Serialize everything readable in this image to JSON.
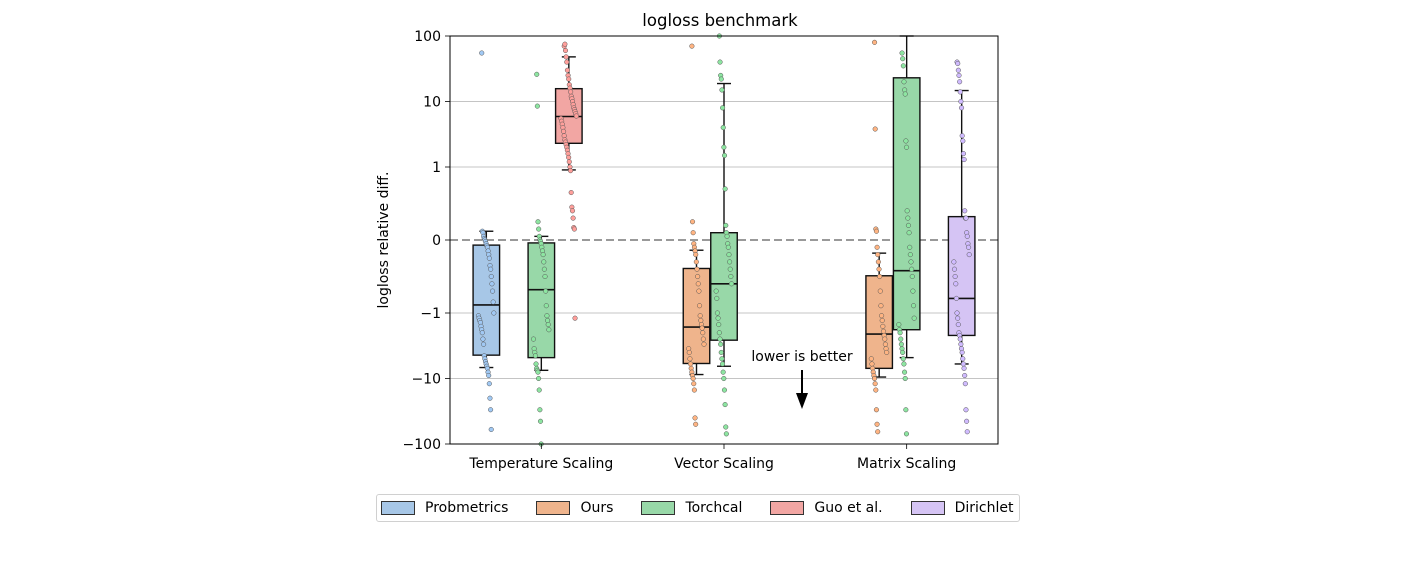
{
  "chart_data": {
    "type": "box",
    "title": "logloss benchmark",
    "ylabel": "logloss relative diff.",
    "xlabel": "",
    "yscale": "symlog",
    "ylim": [
      -100,
      100
    ],
    "yticks": [
      100,
      10,
      1,
      0,
      -1,
      -10,
      -100
    ],
    "ytick_labels": [
      "100",
      "10",
      "1",
      "0",
      "−1",
      "−10",
      "−100"
    ],
    "grid": "horizontal",
    "reference_line": 0,
    "categories": [
      "Temperature Scaling",
      "Vector Scaling",
      "Matrix Scaling"
    ],
    "legend_position": "bottom",
    "series": [
      {
        "name": "Probmetrics",
        "color": "#a7c7e7",
        "point_color": "#a1c9f4",
        "boxes": [
          {
            "category": "Temperature Scaling",
            "whisker_low": -6.8,
            "q1": -4.4,
            "median": -0.89,
            "q3": -0.07,
            "whisker_high": 0.12,
            "points": [
              55,
              0.12,
              0.1,
              0.05,
              0.02,
              0,
              -0.02,
              -0.05,
              -0.08,
              -0.1,
              -0.15,
              -0.2,
              -0.25,
              -0.35,
              -0.4,
              -0.5,
              -0.6,
              -0.7,
              -0.85,
              -1.0,
              -1.1,
              -1.2,
              -1.3,
              -1.4,
              -1.6,
              -1.8,
              -2.0,
              -2.5,
              -3,
              -4.5,
              -5,
              -5.5,
              -6,
              -6.5,
              -7,
              -8,
              -9,
              -12,
              -20,
              -30,
              -60
            ]
          }
        ]
      },
      {
        "name": "Ours",
        "color": "#efb48c",
        "point_color": "#ffb482",
        "boxes": [
          {
            "category": "Vector Scaling",
            "whisker_low": -8.7,
            "q1": -5.9,
            "median": -1.64,
            "q3": -0.39,
            "whisker_high": -0.14,
            "points": [
              70,
              0.25,
              0.1,
              -0.05,
              -0.1,
              -0.15,
              -0.2,
              -0.3,
              -0.4,
              -0.5,
              -0.6,
              -0.7,
              -0.9,
              -1.1,
              -1.3,
              -1.5,
              -1.7,
              -2,
              -2.5,
              -3,
              -3.5,
              -4,
              -5,
              -6,
              -7,
              -8,
              -9,
              -10,
              -12,
              -15,
              -40,
              -50
            ]
          },
          {
            "category": "Matrix Scaling",
            "whisker_low": -9.5,
            "q1": -7.0,
            "median": -2.1,
            "q3": -0.49,
            "whisker_high": -0.18,
            "points": [
              80,
              3.8,
              0.15,
              0.12,
              -0.1,
              -0.2,
              -0.3,
              -0.4,
              -0.5,
              -0.7,
              -0.9,
              -1.1,
              -1.3,
              -1.6,
              -1.9,
              -2.2,
              -2.5,
              -3,
              -3.5,
              -4,
              -5,
              -6,
              -7,
              -8,
              -9,
              -10,
              -12,
              -15,
              -30,
              -50,
              -65
            ]
          }
        ]
      },
      {
        "name": "Torchcal",
        "color": "#98d8a8",
        "point_color": "#8de5a1",
        "boxes": [
          {
            "category": "Temperature Scaling",
            "whisker_low": -7.5,
            "q1": -4.8,
            "median": -0.68,
            "q3": -0.04,
            "whisker_high": 0.05,
            "points": [
              26,
              8.5,
              0.25,
              0.15,
              0.05,
              0,
              -0.02,
              -0.05,
              -0.1,
              -0.15,
              -0.2,
              -0.3,
              -0.4,
              -0.5,
              -0.7,
              -0.9,
              -1.1,
              -1.3,
              -1.5,
              -1.8,
              -2.5,
              -3.5,
              -4,
              -4.5,
              -6,
              -7,
              -7.5,
              -8,
              -10,
              -15,
              -30,
              -45,
              -100
            ]
          },
          {
            "category": "Vector Scaling",
            "whisker_low": -6.5,
            "q1": -2.6,
            "median": -0.6,
            "q3": 0.1,
            "whisker_high": 18.8,
            "points": [
              100,
              40,
              25,
              22,
              15,
              8,
              4,
              2,
              1.5,
              0.7,
              0.2,
              0.1,
              0.05,
              -0.05,
              -0.1,
              -0.2,
              -0.3,
              -0.4,
              -0.5,
              -0.6,
              -0.7,
              -0.8,
              -1,
              -1.2,
              -1.5,
              -2,
              -2.5,
              -3,
              -4,
              -5,
              -6,
              -8,
              -10,
              -15,
              -25,
              -55,
              -70
            ]
          },
          {
            "category": "Matrix Scaling",
            "whisker_low": -4.8,
            "q1": -1.8,
            "median": -0.42,
            "q3": 23,
            "whisker_high": 100,
            "points": [
              55,
              45,
              35,
              20,
              15,
              13,
              2.5,
              2.0,
              0.4,
              0.3,
              0.2,
              0.1,
              -0.1,
              -0.2,
              -0.3,
              -0.4,
              -0.5,
              -0.7,
              -0.9,
              -1.2,
              -1.5,
              -1.8,
              -2,
              -2.5,
              -3,
              -3.5,
              -4,
              -5,
              -6,
              -8,
              -10,
              -30,
              -70
            ]
          }
        ]
      },
      {
        "name": "Guo et al.",
        "color": "#f2a6a3",
        "point_color": "#ff9f9b",
        "boxes": [
          {
            "category": "Temperature Scaling",
            "whisker_low": 0.96,
            "q1": 2.3,
            "median": 5.9,
            "q3": 15.7,
            "whisker_high": 48,
            "points": [
              70,
              75,
              60,
              48,
              40,
              30,
              25,
              22,
              18,
              16,
              14,
              12,
              11,
              10,
              9,
              8,
              7.5,
              7,
              6.5,
              6,
              5.5,
              5,
              4.5,
              4,
              3.5,
              3,
              2.6,
              2.4,
              2.2,
              2.0,
              1.8,
              1.6,
              1.4,
              1.2,
              1.0,
              0.95,
              0.65,
              0.45,
              0.4,
              0.3,
              0.17,
              0.15,
              -1.2
            ]
          }
        ]
      },
      {
        "name": "Dirichlet",
        "color": "#d5c4f4",
        "point_color": "#d0bbff",
        "boxes": [
          {
            "category": "Matrix Scaling",
            "whisker_low": -6,
            "q1": -2.2,
            "median": -0.8,
            "q3": 0.32,
            "whisker_high": 14.7,
            "points": [
              40,
              38,
              30,
              25,
              20,
              14,
              10,
              8,
              3,
              2.5,
              1.6,
              1.3,
              0.4,
              0.3,
              0.3,
              0.1,
              0.05,
              -0.05,
              -0.1,
              -0.2,
              -0.3,
              -0.4,
              -0.5,
              -0.6,
              -0.8,
              -1,
              -1.2,
              -1.5,
              -2,
              -2.2,
              -2.5,
              -3,
              -3.5,
              -4,
              -5,
              -6,
              -7,
              -9,
              -12,
              -30,
              -45,
              -65
            ]
          }
        ]
      }
    ],
    "annotations": [
      {
        "text": "lower is better",
        "arrow": "down"
      }
    ]
  }
}
